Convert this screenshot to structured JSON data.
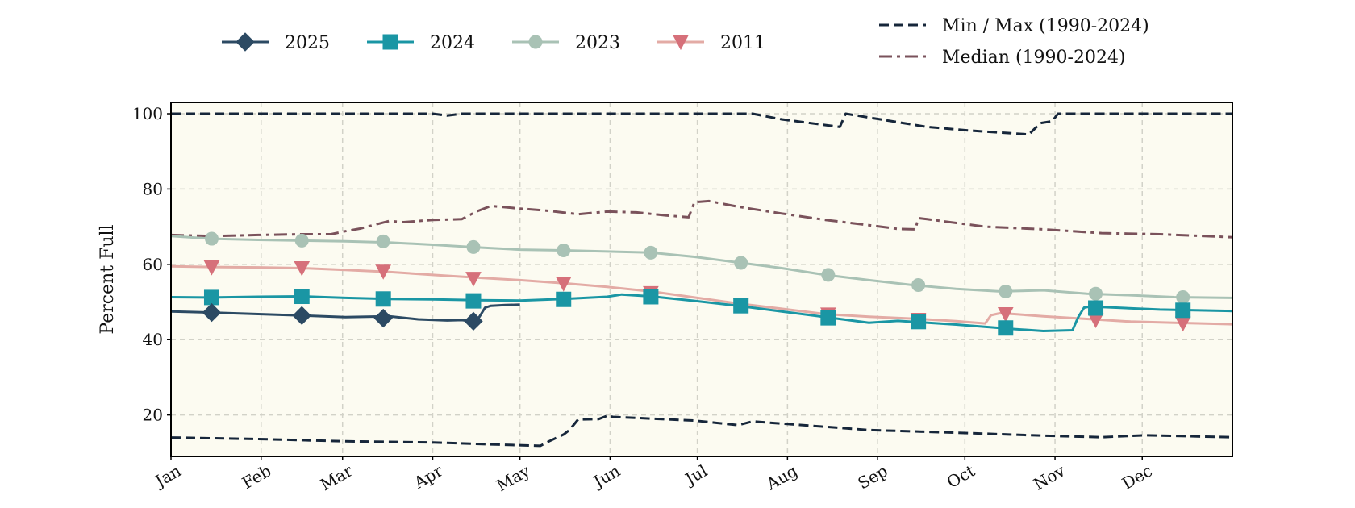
{
  "chart_data": {
    "type": "line",
    "title": "",
    "xlabel": "",
    "ylabel": "Percent Full",
    "ylim": [
      9,
      103
    ],
    "xlim": [
      0,
      365
    ],
    "grid": true,
    "x_ticks": [
      {
        "label": "Jan",
        "day": 0
      },
      {
        "label": "Feb",
        "day": 31
      },
      {
        "label": "Mar",
        "day": 59
      },
      {
        "label": "Apr",
        "day": 90
      },
      {
        "label": "May",
        "day": 120
      },
      {
        "label": "Jun",
        "day": 151
      },
      {
        "label": "Jul",
        "day": 181
      },
      {
        "label": "Aug",
        "day": 212
      },
      {
        "label": "Sep",
        "day": 243
      },
      {
        "label": "Oct",
        "day": 273
      },
      {
        "label": "Nov",
        "day": 304
      },
      {
        "label": "Dec",
        "day": 334
      }
    ],
    "y_ticks": [
      20,
      40,
      60,
      80,
      100
    ],
    "colors": {
      "plot_bg": "#fcfbf1",
      "grid": "#d2d2c8",
      "minmax": "#16263a",
      "median": "#7a525b",
      "y2025": "#2c4a63",
      "y2024": "#1a96a4",
      "y2023": "#a9c2b5",
      "y2011": "#d6707a",
      "y2011_line": "#e3aba5"
    },
    "series": [
      {
        "name": "Max (1990-2024)",
        "legend": "Min / Max (1990-2024)",
        "style": "dashed",
        "color": "#16263a",
        "x": [
          0,
          90,
          95,
          100,
          200,
          210,
          230,
          232,
          240,
          260,
          275,
          295,
          299,
          303,
          305,
          365
        ],
        "y": [
          100,
          100,
          99.5,
          100,
          100,
          98.5,
          96.5,
          100,
          99,
          96.5,
          95.5,
          94.5,
          97.5,
          98,
          100,
          100
        ]
      },
      {
        "name": "Min (1990-2024)",
        "style": "dashed",
        "color": "#16263a",
        "x": [
          0,
          30,
          60,
          90,
          110,
          127,
          130,
          135,
          137,
          140,
          147,
          150,
          152,
          180,
          195,
          200,
          240,
          270,
          300,
          320,
          335,
          365
        ],
        "y": [
          14,
          13.6,
          13,
          12.7,
          12.2,
          11.8,
          13,
          14.8,
          16,
          18.8,
          18.9,
          19.8,
          19.5,
          18.5,
          17.3,
          18.3,
          16,
          15.3,
          14.5,
          14.1,
          14.6,
          14.1
        ]
      },
      {
        "name": "Median (1990-2024)",
        "legend": "Median (1990-2024)",
        "style": "dashdot",
        "color": "#7a525b",
        "x": [
          0,
          15,
          30,
          45,
          55,
          60,
          65,
          70,
          75,
          80,
          90,
          100,
          105,
          110,
          120,
          130,
          140,
          150,
          160,
          170,
          178,
          180,
          185,
          195,
          210,
          225,
          240,
          250,
          256,
          257,
          260,
          280,
          300,
          320,
          340,
          365
        ],
        "y": [
          67.8,
          67.5,
          67.8,
          68,
          68,
          68.8,
          69.5,
          70.5,
          71.5,
          71.2,
          71.8,
          72,
          74,
          75.5,
          74.8,
          74.2,
          73.3,
          74,
          73.8,
          73,
          72.5,
          76.5,
          76.8,
          75.3,
          73.5,
          71.8,
          70.4,
          69.4,
          69.3,
          72.3,
          72,
          70,
          69.3,
          68.3,
          68,
          67.2
        ]
      },
      {
        "name": "2023",
        "legend": "2023",
        "style": "solid",
        "marker": "circle",
        "color": "#a9c2b5",
        "x": [
          0,
          14,
          30,
          45,
          60,
          75,
          90,
          105,
          120,
          135,
          150,
          165,
          180,
          195,
          210,
          225,
          240,
          255,
          270,
          285,
          300,
          315,
          330,
          345,
          365
        ],
        "y": [
          67.5,
          66.8,
          66.5,
          66.3,
          66.1,
          65.8,
          65.2,
          64.5,
          63.9,
          63.7,
          63.4,
          63.1,
          62,
          60.5,
          59,
          57.2,
          55.8,
          54.5,
          53.5,
          52.8,
          53.1,
          52.2,
          51.8,
          51.3,
          51.1
        ],
        "markers_x": [
          14,
          45,
          73,
          104,
          135,
          165,
          196,
          226,
          257,
          287,
          318,
          348
        ],
        "markers_y": [
          66.8,
          66.3,
          66.1,
          64.6,
          63.7,
          63.1,
          60.4,
          57.2,
          54.5,
          52.8,
          52.2,
          51.3
        ]
      },
      {
        "name": "2011",
        "legend": "2011",
        "style": "solid",
        "marker": "triangle-down",
        "color": "#d6707a",
        "x": [
          0,
          14,
          30,
          45,
          60,
          75,
          90,
          105,
          120,
          135,
          150,
          165,
          180,
          195,
          210,
          225,
          240,
          255,
          270,
          280,
          282,
          285,
          290,
          300,
          315,
          330,
          345,
          365
        ],
        "y": [
          59.5,
          59.3,
          59.2,
          59,
          58.5,
          58,
          57.2,
          56.5,
          55.8,
          55,
          54,
          52.8,
          51.2,
          49.6,
          48.2,
          46.8,
          46.1,
          45.6,
          44.9,
          44.3,
          46.5,
          47,
          46.8,
          46.2,
          45.5,
          44.8,
          44.5,
          44.1
        ],
        "markers_x": [
          14,
          45,
          73,
          104,
          135,
          165,
          196,
          226,
          257,
          287,
          318,
          348
        ],
        "markers_y": [
          59.2,
          59,
          58.1,
          56.2,
          54.9,
          52.4,
          49.2,
          46.7,
          45.3,
          46.8,
          45.2,
          44.3
        ]
      },
      {
        "name": "2024",
        "legend": "2024",
        "style": "solid",
        "marker": "square",
        "color": "#1a96a4",
        "x": [
          0,
          14,
          30,
          45,
          60,
          75,
          90,
          105,
          120,
          135,
          150,
          155,
          165,
          180,
          195,
          210,
          225,
          235,
          240,
          250,
          270,
          290,
          300,
          310,
          312,
          314,
          316,
          325,
          340,
          365
        ],
        "y": [
          51.3,
          51.2,
          51.4,
          51.5,
          51.1,
          50.8,
          50.7,
          50.5,
          50.4,
          50.8,
          51.4,
          52,
          51.5,
          50.3,
          49,
          47.5,
          46,
          45,
          44.5,
          45,
          44,
          42.8,
          42.3,
          42.5,
          46,
          48.5,
          48.8,
          48.5,
          48,
          47.6
        ],
        "markers_x": [
          14,
          45,
          73,
          104,
          135,
          165,
          196,
          226,
          257,
          287,
          318,
          348
        ],
        "markers_y": [
          51.2,
          51.5,
          50.8,
          50.3,
          50.7,
          51.4,
          49,
          45.8,
          44.8,
          43.1,
          48.4,
          47.8
        ]
      },
      {
        "name": "2025",
        "legend": "2025",
        "style": "solid",
        "marker": "diamond",
        "color": "#2c4a63",
        "x": [
          0,
          14,
          30,
          45,
          60,
          75,
          85,
          95,
          100,
          104,
          106,
          108,
          110,
          115,
          120
        ],
        "y": [
          47.5,
          47.2,
          46.8,
          46.4,
          46,
          46.2,
          45.4,
          45.1,
          45.2,
          44.8,
          46,
          48.5,
          49,
          49.2,
          49.3
        ],
        "markers_x": [
          14,
          45,
          73,
          104
        ],
        "markers_y": [
          47.2,
          46.4,
          45.7,
          44.9
        ]
      }
    ],
    "legend": {
      "placement": "top",
      "entries": [
        "2025",
        "2024",
        "2023",
        "2011",
        "Min / Max (1990-2024)",
        "Median (1990-2024)"
      ]
    }
  }
}
